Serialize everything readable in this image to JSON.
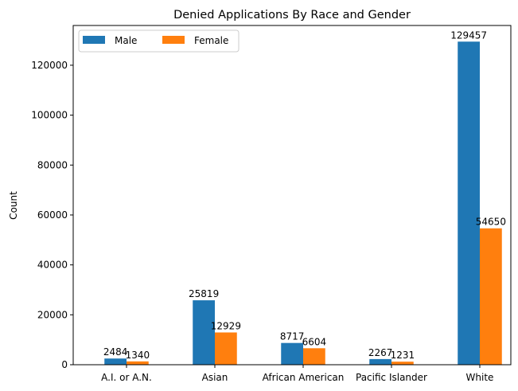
{
  "chart_data": {
    "type": "bar",
    "title": "Denied Applications By Race and Gender",
    "xlabel": "",
    "ylabel": "Count",
    "categories": [
      "A.I. or A.N.",
      "Asian",
      "African American",
      "Pacific Islander",
      "White"
    ],
    "series": [
      {
        "name": "Male",
        "color": "#1f77b4",
        "values": [
          2484,
          25819,
          8717,
          2267,
          129457
        ]
      },
      {
        "name": "Female",
        "color": "#ff7f0e",
        "values": [
          1340,
          12929,
          6604,
          1231,
          54650
        ]
      }
    ],
    "ylim": [
      0,
      135927
    ],
    "yticks": [
      0,
      20000,
      40000,
      60000,
      80000,
      100000,
      120000
    ],
    "grid": false,
    "legend_position": "top-left",
    "legend_columns": 2,
    "data_labels": true
  }
}
